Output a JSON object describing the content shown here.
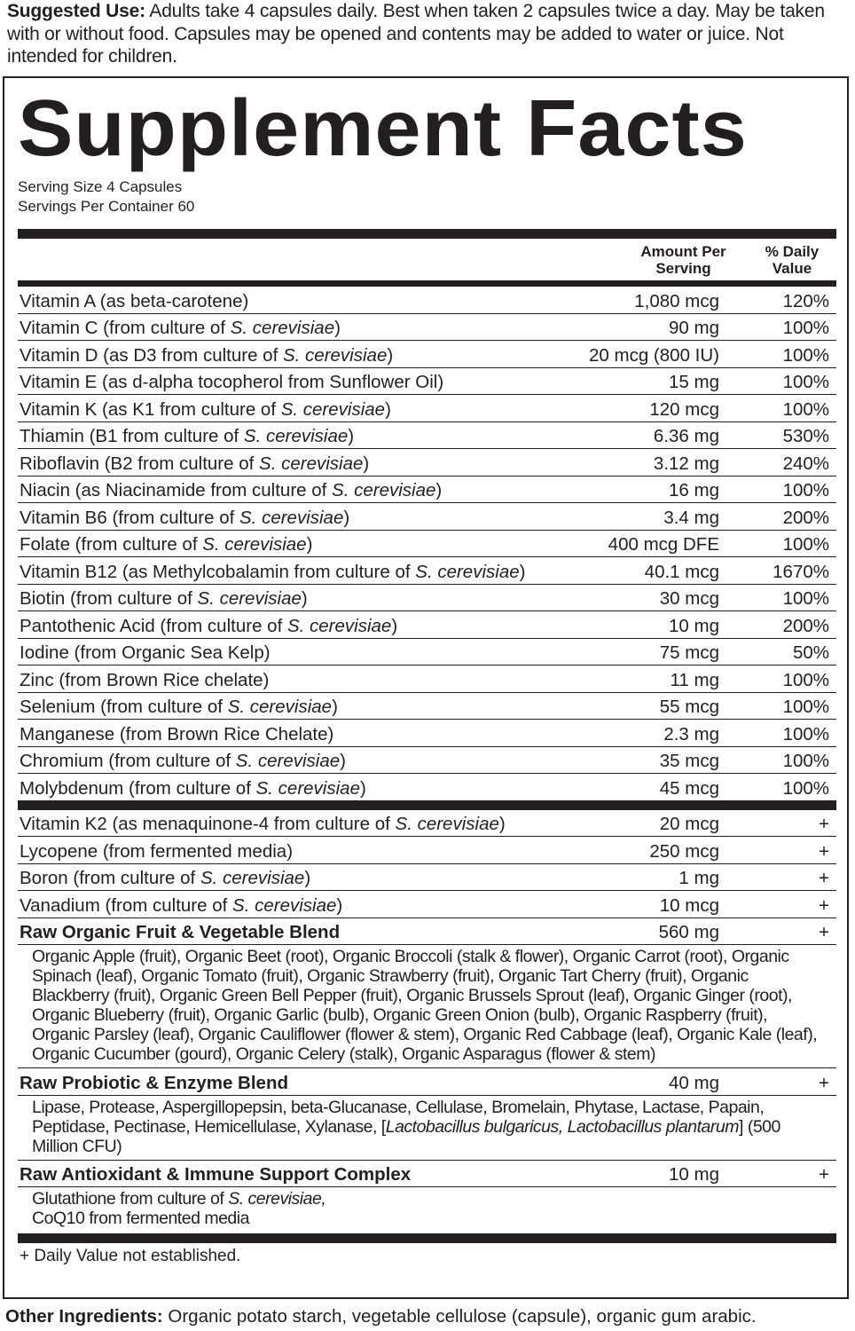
{
  "suggested_use": {
    "label": "Suggested Use:",
    "text": "Adults take 4 capsules daily. Best when taken 2 capsules twice a day. May be taken with or without food. Capsules may be opened and contents may be added to water or juice. Not intended for children."
  },
  "facts": {
    "title": "Supplement Facts",
    "serving_size": "Serving Size 4 Capsules",
    "servings_per_container": "Servings Per Container 60",
    "header_amount": "Amount Per Serving",
    "header_dv": "% Daily Value",
    "vitamins": [
      {
        "pre": "Vitamin A (as beta-carotene)",
        "it": "",
        "post": "",
        "amount": "1,080 mcg",
        "dv": "120%"
      },
      {
        "pre": "Vitamin C (from culture of ",
        "it": "S. cerevisiae",
        "post": ")",
        "amount": "90 mg",
        "dv": "100%"
      },
      {
        "pre": "Vitamin D (as D3 from culture of ",
        "it": "S. cerevisiae",
        "post": ")",
        "amount": "20 mcg (800 IU)",
        "dv": "100%"
      },
      {
        "pre": "Vitamin E (as d-alpha tocopherol from Sunflower Oil)",
        "it": "",
        "post": "",
        "amount": "15 mg",
        "dv": "100%"
      },
      {
        "pre": "Vitamin K (as K1 from culture of ",
        "it": "S. cerevisiae",
        "post": ")",
        "amount": "120 mcg",
        "dv": "100%"
      },
      {
        "pre": "Thiamin (B1 from culture of ",
        "it": "S. cerevisiae",
        "post": ")",
        "amount": "6.36 mg",
        "dv": "530%"
      },
      {
        "pre": "Riboflavin (B2 from culture of ",
        "it": "S. cerevisiae",
        "post": ")",
        "amount": "3.12 mg",
        "dv": "240%"
      },
      {
        "pre": "Niacin (as Niacinamide from culture of ",
        "it": "S. cerevisiae",
        "post": ")",
        "amount": "16 mg",
        "dv": "100%"
      },
      {
        "pre": "Vitamin B6 (from culture of ",
        "it": "S. cerevisiae",
        "post": ")",
        "amount": "3.4 mg",
        "dv": "200%"
      },
      {
        "pre": "Folate (from culture of ",
        "it": "S. cerevisiae",
        "post": ")",
        "amount": "400 mcg DFE",
        "dv": "100%"
      },
      {
        "pre": "Vitamin B12 (as Methylcobalamin from culture of ",
        "it": "S. cerevisiae",
        "post": ")",
        "amount": "40.1 mcg",
        "dv": "1670%"
      },
      {
        "pre": "Biotin (from culture of ",
        "it": "S. cerevisiae",
        "post": ")",
        "amount": "30 mcg",
        "dv": "100%"
      },
      {
        "pre": "Pantothenic Acid (from culture of ",
        "it": "S. cerevisiae",
        "post": ")",
        "amount": "10 mg",
        "dv": "200%"
      },
      {
        "pre": "Iodine (from Organic Sea Kelp)",
        "it": "",
        "post": "",
        "amount": "75 mcg",
        "dv": "50%"
      },
      {
        "pre": "Zinc (from Brown Rice chelate)",
        "it": "",
        "post": "",
        "amount": "11 mg",
        "dv": "100%"
      },
      {
        "pre": "Selenium (from culture of ",
        "it": "S. cerevisiae",
        "post": ")",
        "amount": "55 mcg",
        "dv": "100%"
      },
      {
        "pre": "Manganese (from Brown Rice Chelate)",
        "it": "",
        "post": "",
        "amount": "2.3 mg",
        "dv": "100%"
      },
      {
        "pre": "Chromium (from culture of ",
        "it": "S. cerevisiae",
        "post": ")",
        "amount": "35 mcg",
        "dv": "100%"
      },
      {
        "pre": "Molybdenum (from culture of ",
        "it": "S. cerevisiae",
        "post": ")",
        "amount": "45 mcg",
        "dv": "100%"
      }
    ],
    "others": [
      {
        "pre": "Vitamin K2 (as menaquinone-4 from culture of ",
        "it": "S. cerevisiae",
        "post": ")",
        "amount": "20 mcg",
        "dv": "+"
      },
      {
        "pre": "Lycopene (from fermented media)",
        "it": "",
        "post": "",
        "amount": "250 mcg",
        "dv": "+"
      },
      {
        "pre": "Boron (from culture of ",
        "it": "S. cerevisiae",
        "post": ")",
        "amount": "1 mg",
        "dv": "+"
      },
      {
        "pre": "Vanadium (from culture of ",
        "it": "S. cerevisiae",
        "post": ")",
        "amount": "10 mcg",
        "dv": "+"
      }
    ],
    "blends": [
      {
        "name": "Raw Organic Fruit & Vegetable Blend",
        "amount": "560 mg",
        "dv": "+",
        "desc": [
          {
            "t": "Organic Apple (fruit), Organic Beet (root), Organic Broccoli (stalk & flower), Organic Carrot (root), Organic Spinach (leaf), Organic Tomato (fruit), Organic Strawberry (fruit), Organic Tart Cherry (fruit), Organic Blackberry (fruit), Organic Green Bell Pepper (fruit), Organic Brussels Sprout (leaf), Organic Ginger (root), Organic Blueberry (fruit), Organic Garlic (bulb), Organic Green Onion (bulb), Organic Raspberry (fruit), Organic Parsley (leaf), Organic Cauliflower (flower & stem), Organic Red Cabbage (leaf), Organic Kale (leaf), Organic Cucumber (gourd), Organic Celery (stalk), Organic Asparagus (flower & stem)",
            "it": false
          }
        ]
      },
      {
        "name": "Raw Probiotic & Enzyme Blend",
        "amount": "40 mg",
        "dv": "+",
        "desc": [
          {
            "t": "Lipase, Protease, Aspergillopepsin, beta-Glucanase, Cellulase, Bromelain, Phytase, Lactase, Papain, Peptidase, Pectinase, Hemicellulase, Xylanase, [",
            "it": false
          },
          {
            "t": "Lactobacillus bulgaricus, Lactobacillus plantarum",
            "it": true
          },
          {
            "t": "] (500 Million CFU)",
            "it": false
          }
        ]
      },
      {
        "name": "Raw Antioxidant & Immune Support Complex",
        "amount": "10 mg",
        "dv": "+",
        "desc": [
          {
            "t": "Glutathione from culture of ",
            "it": false
          },
          {
            "t": "S. cerevisiae,",
            "it": true
          },
          {
            "t": "\nCoQ10 from fermented media",
            "it": false
          }
        ]
      }
    ],
    "footnote": "+ Daily Value not established."
  },
  "other_ingredients": {
    "label": "Other Ingredients:",
    "text": "Organic potato starch, vegetable cellulose (capsule), organic gum arabic."
  }
}
